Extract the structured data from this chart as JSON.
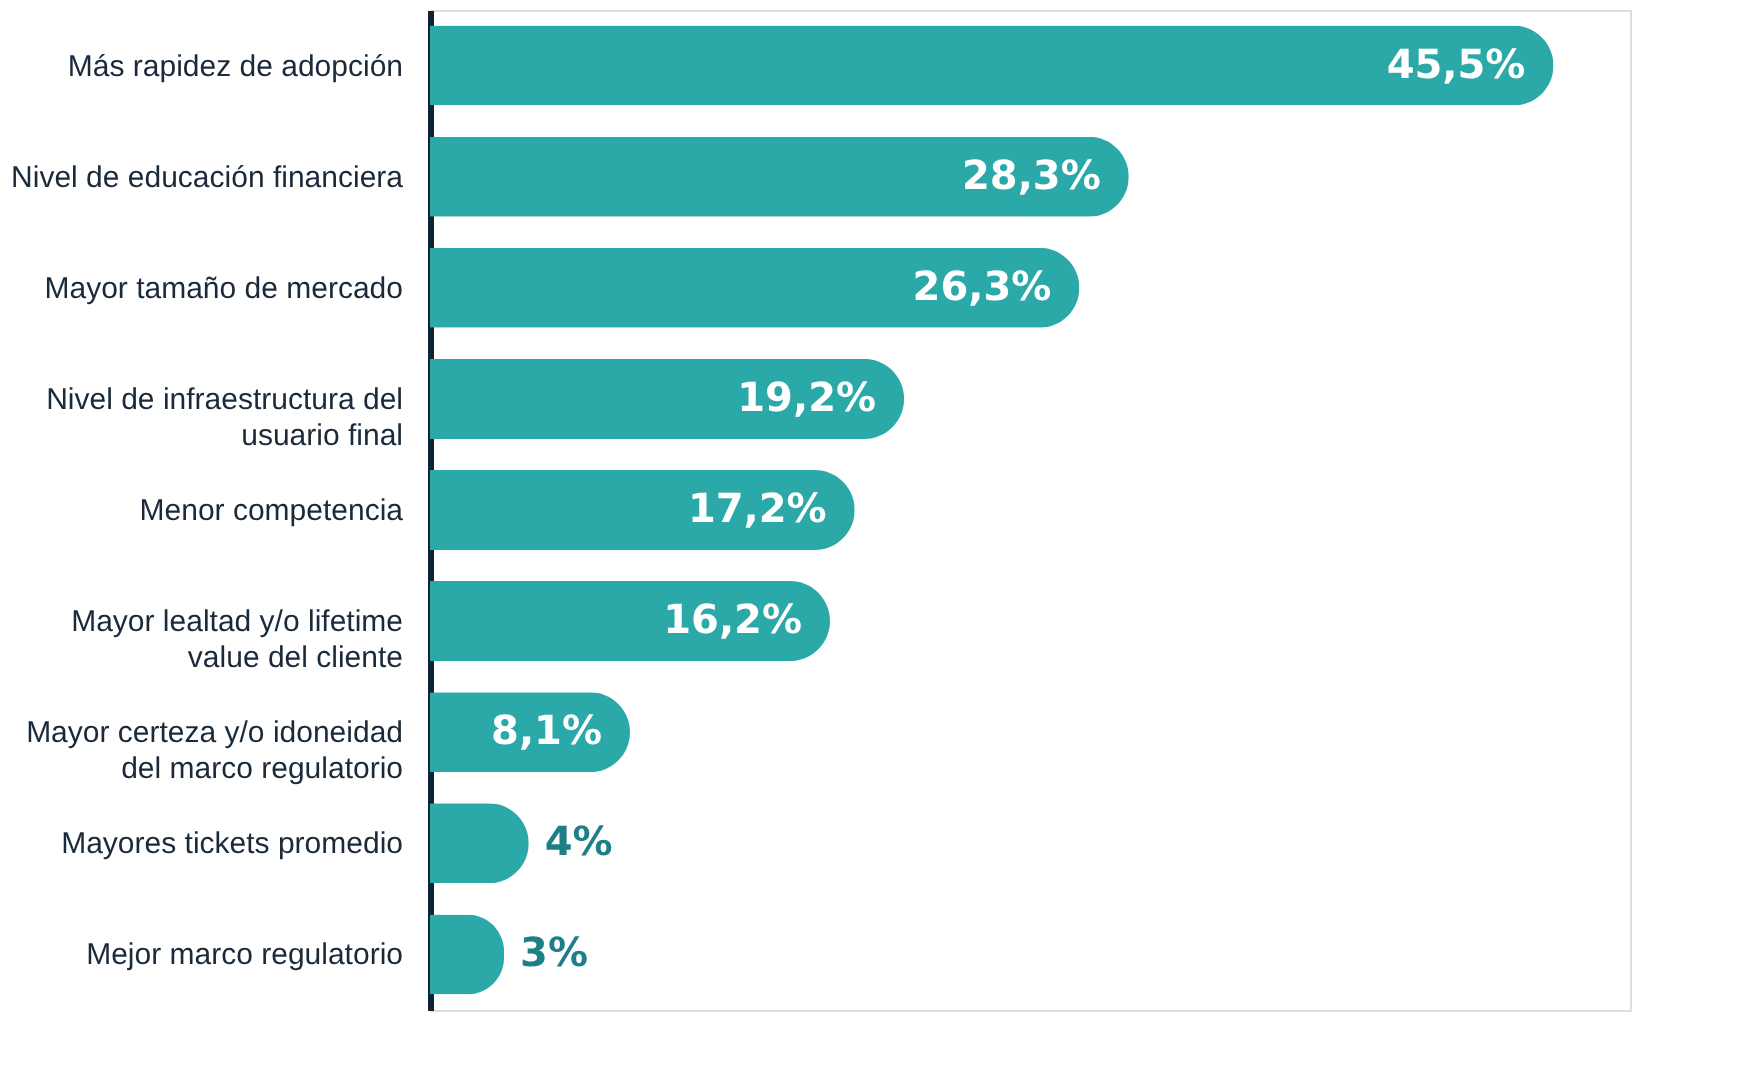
{
  "chart_data": {
    "type": "bar",
    "orientation": "horizontal",
    "categories": [
      "Más rapidez de adopción",
      "Nivel de educación financiera",
      "Mayor tamaño de mercado",
      "Nivel de infraestructura del usuario final",
      "Menor competencia",
      "Mayor lealtad y/o lifetime value del cliente",
      "Mayor certeza y/o idoneidad del marco regulatorio",
      "Mayores tickets promedio",
      "Mejor marco regulatorio"
    ],
    "values": [
      45.5,
      28.3,
      26.3,
      19.2,
      17.2,
      16.2,
      8.1,
      4,
      3
    ],
    "value_labels": [
      "45,5%",
      "28,3%",
      "26,3%",
      "19,2%",
      "17,2%",
      "16,2%",
      "8,1%",
      "4%",
      "3%"
    ],
    "color": "#2ba8a8",
    "xlim": [
      0,
      48.6
    ],
    "tick_labels": "y",
    "grid": false
  }
}
